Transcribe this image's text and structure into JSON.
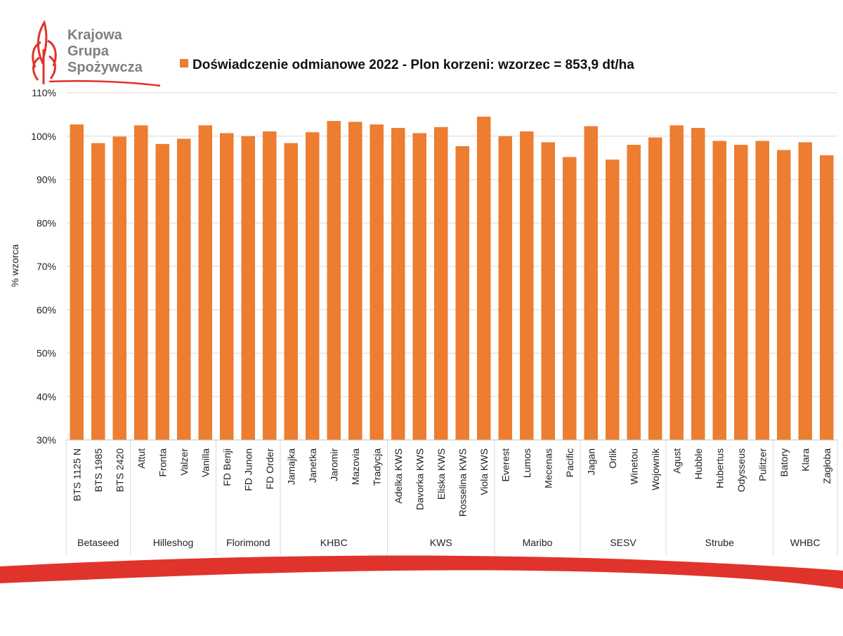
{
  "logo": {
    "line1": "Krajowa",
    "line2": "Grupa",
    "line3": "Spożywcza"
  },
  "colors": {
    "bar": "#ED7D31",
    "grid": "#D9D9D9",
    "axis_text": "#222222",
    "logo_text": "#7F7F7F",
    "logo_red": "#E0332B",
    "swoosh_red": "#E0332B"
  },
  "chart_data": {
    "type": "bar",
    "title": "Doświadczenie odmianowe 2022 - Plon korzeni: wzorzec = 853,9 dt/ha",
    "ylabel": "% wzorca",
    "xlabel": "",
    "ylim": [
      30,
      110
    ],
    "y_ticks": [
      "30%",
      "40%",
      "50%",
      "60%",
      "70%",
      "80%",
      "90%",
      "100%",
      "110%"
    ],
    "grid": true,
    "legend": "top",
    "categories": [
      "BTS 1125 N",
      "BTS 1985",
      "BTS 2420",
      "Attut",
      "Fronta",
      "Valzer",
      "Vanilla",
      "FD Benji",
      "FD Junon",
      "FD Order",
      "Jamajka",
      "Janetka",
      "Jaromir",
      "Mazovia",
      "Tradycja",
      "Adelka KWS",
      "Davorka KWS",
      "Eliska KWS",
      "Rosselina KWS",
      "Viola KWS",
      "Everest",
      "Lumos",
      "Mecenas",
      "Pacific",
      "Jagan",
      "Orlik",
      "Winetou",
      "Wojownik",
      "Agust",
      "Hubble",
      "Hubertus",
      "Odysseus",
      "Pulitzer",
      "Batory",
      "Klara",
      "Zagłoba"
    ],
    "values": [
      102.7,
      98.4,
      99.9,
      102.5,
      98.2,
      99.4,
      102.5,
      100.7,
      100.0,
      101.1,
      98.4,
      100.9,
      103.5,
      103.3,
      102.7,
      101.9,
      100.7,
      102.1,
      97.7,
      104.5,
      100.0,
      101.1,
      98.6,
      95.2,
      102.3,
      94.6,
      98.0,
      99.7,
      102.5,
      101.9,
      98.9,
      98.0,
      98.9,
      96.8,
      98.6,
      95.6
    ],
    "groups": [
      {
        "name": "Betaseed",
        "count": 3
      },
      {
        "name": "Hilleshog",
        "count": 4
      },
      {
        "name": "Florimond",
        "count": 3
      },
      {
        "name": "KHBC",
        "count": 5
      },
      {
        "name": "KWS",
        "count": 5
      },
      {
        "name": "Maribo",
        "count": 4
      },
      {
        "name": "SESV",
        "count": 4
      },
      {
        "name": "Strube",
        "count": 5
      },
      {
        "name": "WHBC",
        "count": 3
      }
    ]
  }
}
